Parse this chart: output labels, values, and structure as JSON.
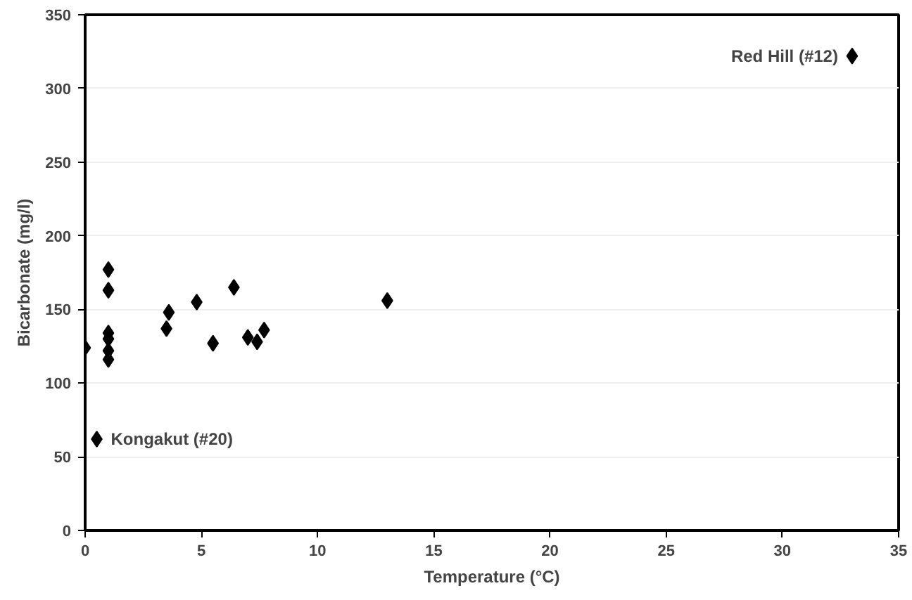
{
  "chart_data": {
    "type": "scatter",
    "xlabel": "Temperature (°C)",
    "ylabel": "Bicarbonate (mg/l)",
    "x": [
      0,
      1,
      1,
      1,
      1,
      1,
      1,
      3.5,
      3.6,
      4.8,
      5.5,
      6.4,
      7.0,
      7.4,
      7.7,
      13,
      0.5,
      33
    ],
    "series": [
      {
        "color": "#000000",
        "values": [
          124,
          177,
          163,
          134,
          130,
          122,
          116,
          137,
          148,
          155,
          127,
          165,
          131,
          128,
          136,
          156,
          62,
          322
        ]
      }
    ],
    "xlim": [
      0,
      35
    ],
    "ylim": [
      0,
      350
    ],
    "xticks": [
      0,
      5,
      10,
      15,
      20,
      25,
      30,
      35
    ],
    "yticks": [
      0,
      50,
      100,
      150,
      200,
      250,
      300,
      350
    ],
    "grid": "y",
    "marker": "diamond",
    "annotations": [
      {
        "text": "Kongakut (#20)",
        "x": 0.5,
        "y": 62
      },
      {
        "text": "Red Hill (#12)",
        "x": 33,
        "y": 322
      }
    ]
  }
}
